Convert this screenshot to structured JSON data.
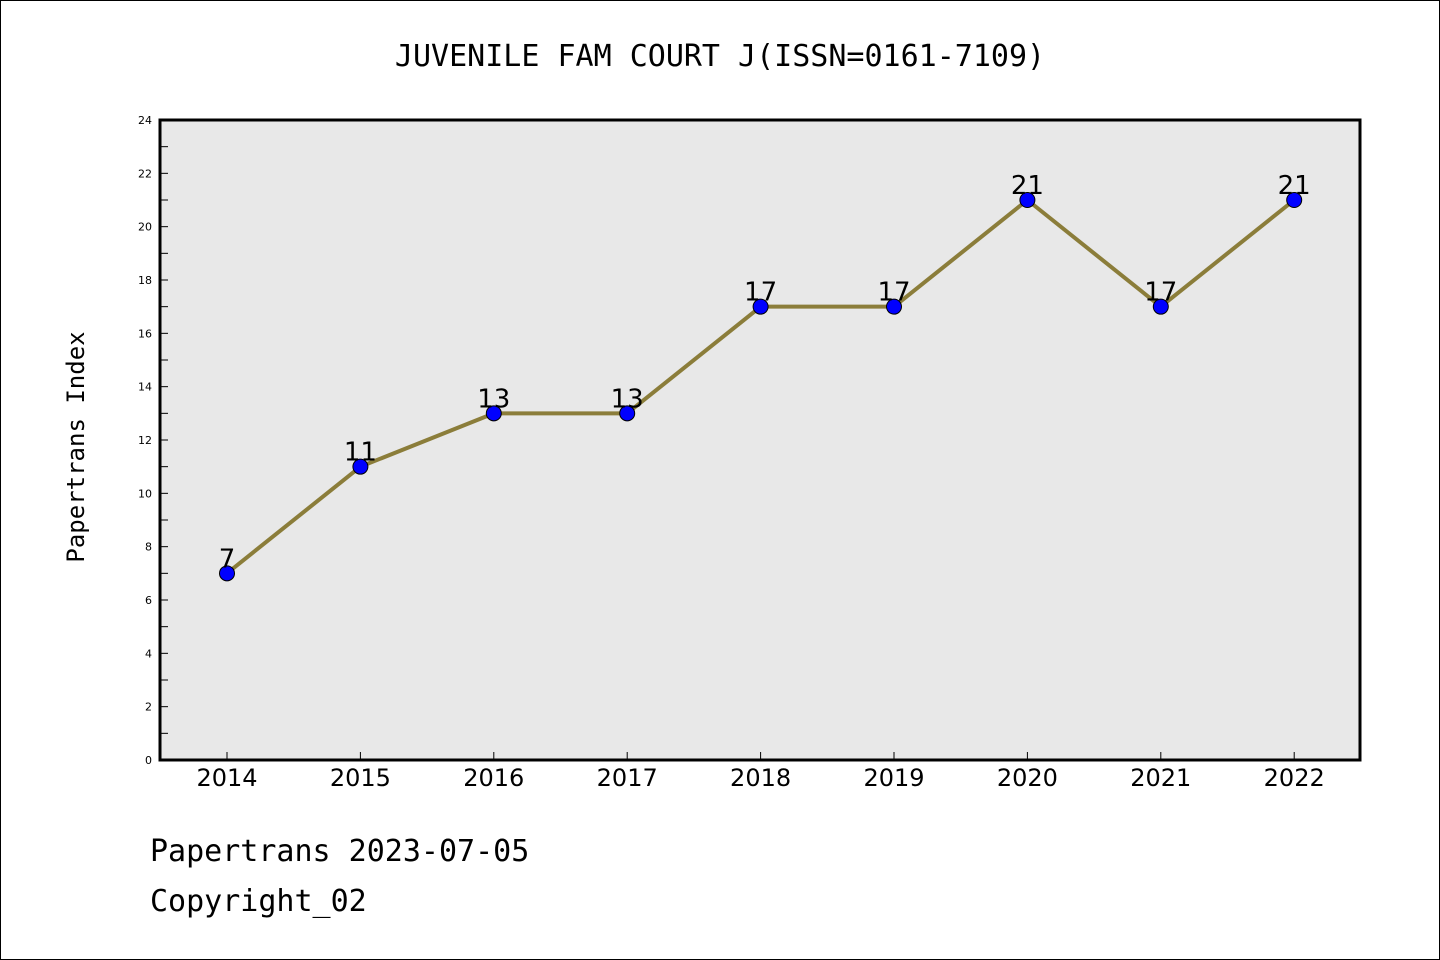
{
  "chart_data": {
    "type": "line",
    "title": "JUVENILE FAM COURT J(ISSN=0161-7109)",
    "xlabel": "",
    "ylabel": "Papertrans Index",
    "categories": [
      "2014",
      "2015",
      "2016",
      "2017",
      "2018",
      "2019",
      "2020",
      "2021",
      "2022"
    ],
    "series": [
      {
        "values": [
          7,
          11,
          13,
          13,
          17,
          17,
          21,
          17,
          21
        ]
      }
    ],
    "data_labels": [
      "7",
      "11",
      "13",
      "13",
      "17",
      "17",
      "21",
      "17",
      "21"
    ],
    "ylim": [
      0,
      24
    ],
    "yticks": [
      0,
      2,
      4,
      6,
      8,
      10,
      12,
      14,
      16,
      18,
      20,
      22,
      24
    ],
    "ytick_labels": [
      "0",
      "2",
      "4",
      "6",
      "8",
      "10",
      "12",
      "14",
      "16",
      "18",
      "20",
      "22",
      "24"
    ],
    "grid": false,
    "legend": "none",
    "colors": {
      "line": "#8B7D3A",
      "marker": "#0000FF",
      "plot_background": "#E8E8E8"
    }
  },
  "footer": {
    "source": "Papertrans 2023-07-05",
    "copyright": "Copyright_02"
  }
}
